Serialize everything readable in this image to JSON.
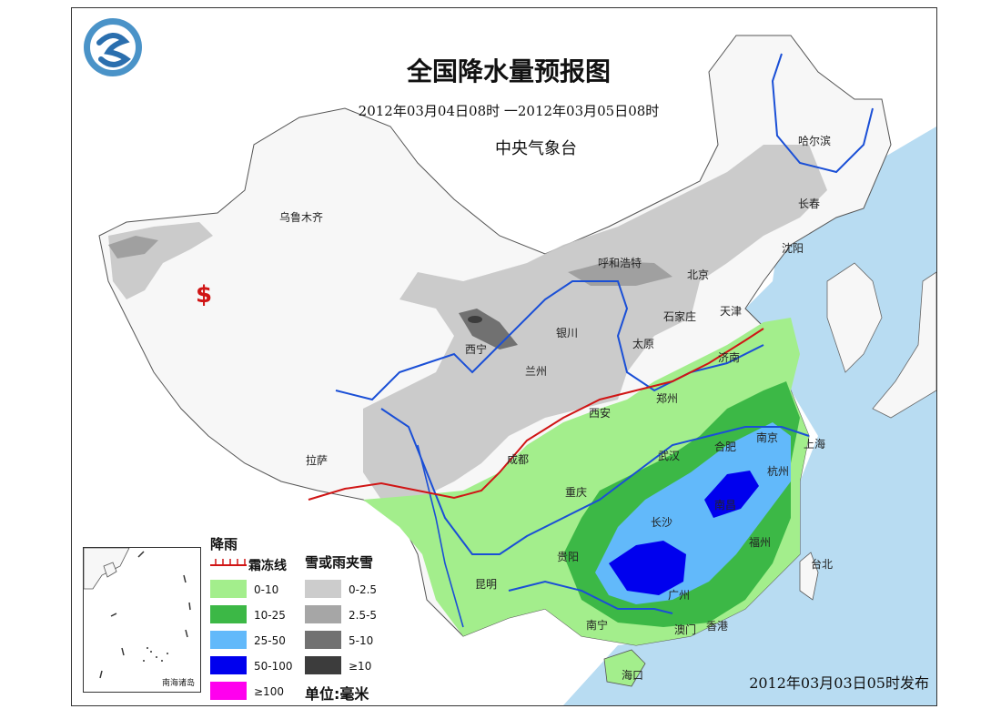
{
  "map": {
    "title": "全国降水量预报图",
    "period": "2012年03月04日08时 一2012年03月05日08时",
    "issuer": "中央气象台",
    "issued_at": "2012年03月03日05时发布",
    "inset_label": "南海诸岛"
  },
  "cities": [
    {
      "name": "哈尔滨"
    },
    {
      "name": "长春"
    },
    {
      "name": "沈阳"
    },
    {
      "name": "乌鲁木齐"
    },
    {
      "name": "呼和浩特"
    },
    {
      "name": "北京"
    },
    {
      "name": "天津"
    },
    {
      "name": "石家庄"
    },
    {
      "name": "西宁"
    },
    {
      "name": "银川"
    },
    {
      "name": "太原"
    },
    {
      "name": "济南"
    },
    {
      "name": "兰州"
    },
    {
      "name": "郑州"
    },
    {
      "name": "西安"
    },
    {
      "name": "南京"
    },
    {
      "name": "上海"
    },
    {
      "name": "合肥"
    },
    {
      "name": "武汉"
    },
    {
      "name": "成都"
    },
    {
      "name": "杭州"
    },
    {
      "name": "拉萨"
    },
    {
      "name": "重庆"
    },
    {
      "name": "南昌"
    },
    {
      "name": "长沙"
    },
    {
      "name": "福州"
    },
    {
      "name": "贵阳"
    },
    {
      "name": "台北"
    },
    {
      "name": "昆明"
    },
    {
      "name": "广州"
    },
    {
      "name": "南宁"
    },
    {
      "name": "澳门"
    },
    {
      "name": "香港"
    },
    {
      "name": "海口"
    }
  ],
  "marker_symbol": "$",
  "legend": {
    "rain_title": "降雨",
    "frost_line_label": "霜冻线",
    "snow_title": "雪或雨夹雪",
    "rain": [
      {
        "label": "0-10",
        "color": "#a3ee8c"
      },
      {
        "label": "10-25",
        "color": "#3cb846"
      },
      {
        "label": "25-50",
        "color": "#62b9fa"
      },
      {
        "label": "50-100",
        "color": "#0000ee"
      },
      {
        "label": "≥100",
        "color": "#ff00ee"
      }
    ],
    "snow": [
      {
        "label": "0-2.5",
        "color": "#cccccc"
      },
      {
        "label": "2.5-5",
        "color": "#a6a6a6"
      },
      {
        "label": "5-10",
        "color": "#717171"
      },
      {
        "label": "≥10",
        "color": "#3c3c3c"
      }
    ],
    "unit": "单位:毫米"
  },
  "colors": {
    "sea": "#b8dcf2",
    "land": "#f7f7f7",
    "river": "#1a4fd6",
    "frost_line": "#d01515"
  }
}
